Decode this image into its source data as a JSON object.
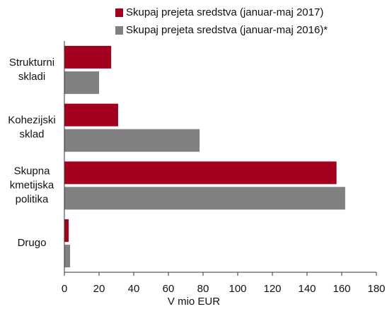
{
  "chart_data": {
    "type": "bar",
    "orientation": "horizontal",
    "categories": [
      "Strukturni skladi",
      "Kohezijski sklad",
      "Skupna kmetijska politika",
      "Drugo"
    ],
    "series": [
      {
        "name": "Skupaj prejeta sredstva (januar-maj 2017)",
        "color": "#a1001f",
        "values": [
          27,
          31,
          157,
          2.5
        ]
      },
      {
        "name": "Skupaj prejeta sredstva (januar-maj 2016)*",
        "color": "#808080",
        "values": [
          20,
          78,
          162,
          3.3
        ]
      }
    ],
    "xlabel": "V mio EUR",
    "xlim": [
      0,
      180
    ],
    "xticks": [
      0,
      20,
      40,
      60,
      80,
      100,
      120,
      140,
      160,
      180
    ]
  }
}
